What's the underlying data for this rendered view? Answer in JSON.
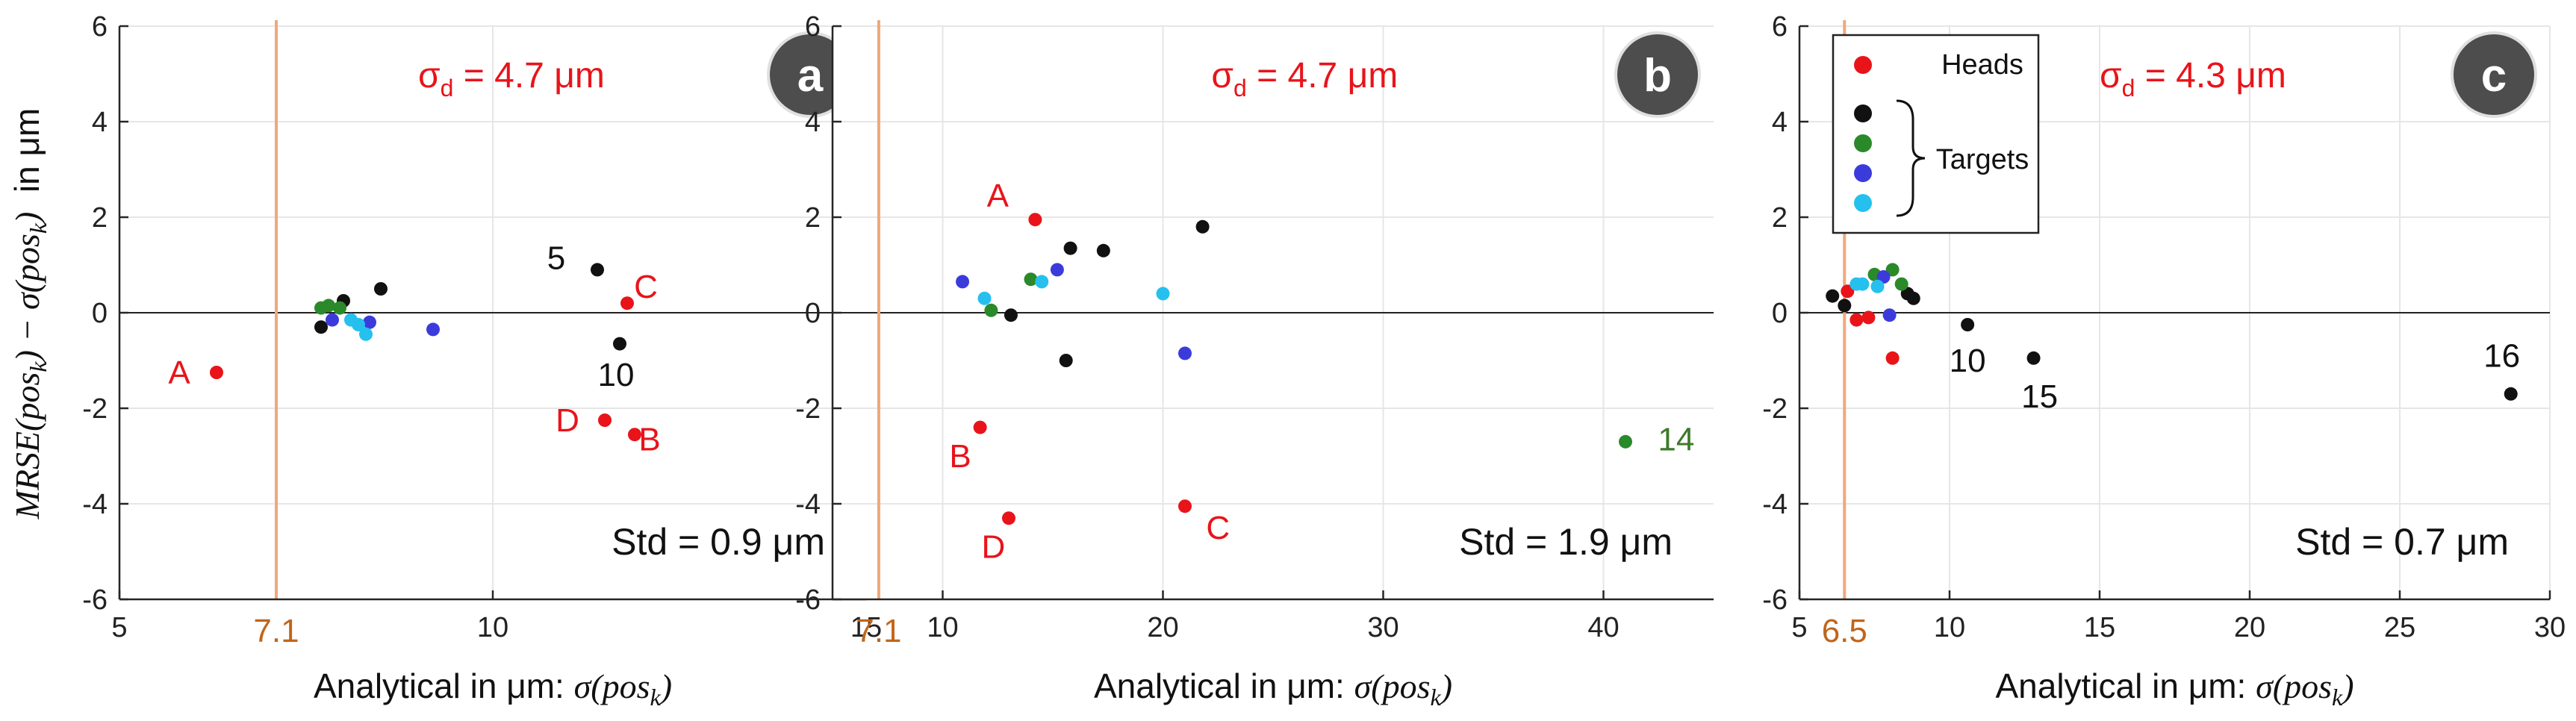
{
  "figure": {
    "ylabel": "MRSE(pos_k) − σ(pos_k)  in μm",
    "ylabel_parts": {
      "p1": "MRSE(pos",
      "sub1": "k",
      "p2": ") − ",
      "p3": "σ(pos",
      "sub2": "k",
      "p4": ")",
      "p5": "  in μm"
    },
    "xlabel_prefix": "Analytical in μm: ",
    "xlabel_math": "σ(pos",
    "xlabel_sub": "k",
    "xlabel_close": ")"
  },
  "colors": {
    "red": "#e8141a",
    "black": "#111111",
    "green": "#2a8a2a",
    "blue": "#3b3bdc",
    "cyan": "#25c0ee",
    "orange_line": "#f0a87a",
    "orange_text": "#c0651a",
    "green_text": "#3d7a2a",
    "badge": "#4d4d4d"
  },
  "chart_data": [
    {
      "type": "scatter",
      "panel": "a",
      "xlim": [
        5,
        15
      ],
      "ylim": [
        -6,
        6
      ],
      "xticks": [
        5,
        10,
        15
      ],
      "yticks": [
        -6,
        -4,
        -2,
        0,
        2,
        4,
        6
      ],
      "grid": true,
      "vline": {
        "x": 7.1,
        "label": "7.1"
      },
      "sigma_text": "σd = 4.7 μm",
      "sigma_main": "σ",
      "sigma_sub": "d",
      "sigma_rest": " = 4.7 μm",
      "std_text": "Std = 0.9 μm",
      "series": [
        {
          "name": "Heads",
          "color": "red",
          "points": [
            [
              6.3,
              -1.25
            ],
            [
              11.8,
              0.2
            ],
            [
              11.9,
              -2.55
            ],
            [
              11.5,
              -2.25
            ]
          ]
        },
        {
          "name": "Target 1",
          "color": "black",
          "points": [
            [
              7.7,
              -0.3
            ],
            [
              8.0,
              0.25
            ],
            [
              8.5,
              0.5
            ],
            [
              11.4,
              0.9
            ],
            [
              11.7,
              -0.65
            ]
          ]
        },
        {
          "name": "Target 2",
          "color": "green",
          "points": [
            [
              7.7,
              0.1
            ],
            [
              7.8,
              0.15
            ],
            [
              7.95,
              0.1
            ]
          ]
        },
        {
          "name": "Target 3",
          "color": "blue",
          "points": [
            [
              7.85,
              -0.15
            ],
            [
              8.35,
              -0.2
            ],
            [
              9.2,
              -0.35
            ]
          ]
        },
        {
          "name": "Target 4",
          "color": "cyan",
          "points": [
            [
              8.1,
              -0.15
            ],
            [
              8.2,
              -0.25
            ],
            [
              8.3,
              -0.45
            ]
          ]
        }
      ],
      "annotations": [
        {
          "text": "A",
          "x": 5.8,
          "y": -1.25,
          "color": "red"
        },
        {
          "text": "C",
          "x": 12.05,
          "y": 0.55,
          "color": "red"
        },
        {
          "text": "B",
          "x": 12.1,
          "y": -2.65,
          "color": "red"
        },
        {
          "text": "D",
          "x": 11.0,
          "y": -2.25,
          "color": "red"
        },
        {
          "text": "5",
          "x": 10.85,
          "y": 1.15,
          "color": "black"
        },
        {
          "text": "10",
          "x": 11.65,
          "y": -1.3,
          "color": "black"
        }
      ]
    },
    {
      "type": "scatter",
      "panel": "b",
      "xlim": [
        5,
        45
      ],
      "ylim": [
        -6,
        6
      ],
      "xticks": [
        10,
        20,
        30,
        40
      ],
      "yticks": [
        -6,
        -4,
        -2,
        0,
        2,
        4,
        6
      ],
      "grid": true,
      "vline": {
        "x": 7.1,
        "label": "7.1"
      },
      "sigma_text": "σd = 4.7 μm",
      "sigma_main": "σ",
      "sigma_sub": "d",
      "sigma_rest": " = 4.7 μm",
      "std_text": "Std = 1.9 μm",
      "series": [
        {
          "name": "Heads",
          "color": "red",
          "points": [
            [
              14.2,
              1.95
            ],
            [
              11.7,
              -2.4
            ],
            [
              13.0,
              -4.3
            ],
            [
              21.0,
              -4.05
            ]
          ]
        },
        {
          "name": "Target 1",
          "color": "black",
          "points": [
            [
              15.8,
              1.35
            ],
            [
              17.3,
              1.3
            ],
            [
              21.8,
              1.8
            ],
            [
              13.1,
              -0.05
            ],
            [
              15.6,
              -1.0
            ]
          ]
        },
        {
          "name": "Target 2",
          "color": "green",
          "points": [
            [
              14.0,
              0.7
            ],
            [
              12.2,
              0.05
            ],
            [
              41.0,
              -2.7
            ]
          ]
        },
        {
          "name": "Target 3",
          "color": "blue",
          "points": [
            [
              10.9,
              0.65
            ],
            [
              15.2,
              0.9
            ],
            [
              21.0,
              -0.85
            ]
          ]
        },
        {
          "name": "Target 4",
          "color": "cyan",
          "points": [
            [
              11.9,
              0.3
            ],
            [
              14.5,
              0.65
            ],
            [
              20.0,
              0.4
            ]
          ]
        }
      ],
      "annotations": [
        {
          "text": "A",
          "x": 12.5,
          "y": 2.45,
          "color": "red"
        },
        {
          "text": "B",
          "x": 10.8,
          "y": -3.0,
          "color": "red"
        },
        {
          "text": "D",
          "x": 12.3,
          "y": -4.9,
          "color": "red"
        },
        {
          "text": "C",
          "x": 22.5,
          "y": -4.5,
          "color": "red"
        },
        {
          "text": "14",
          "x": 43.3,
          "y": -2.65,
          "color": "green_text"
        }
      ]
    },
    {
      "type": "scatter",
      "panel": "c",
      "xlim": [
        5,
        30
      ],
      "ylim": [
        -6,
        6
      ],
      "xticks": [
        5,
        10,
        15,
        20,
        25,
        30
      ],
      "yticks": [
        -6,
        -4,
        -2,
        0,
        2,
        4,
        6
      ],
      "grid": true,
      "vline": {
        "x": 6.5,
        "label": "6.5"
      },
      "sigma_text": "σd = 4.3 μm",
      "sigma_main": "σ",
      "sigma_sub": "d",
      "sigma_rest": " = 4.3 μm",
      "std_text": "Std = 0.7 μm",
      "legend": {
        "heads": "Heads",
        "targets": "Targets",
        "placement": "top-left"
      },
      "series": [
        {
          "name": "Heads",
          "color": "red",
          "points": [
            [
              6.6,
              0.45
            ],
            [
              6.9,
              -0.15
            ],
            [
              7.3,
              -0.1
            ],
            [
              8.1,
              -0.95
            ]
          ]
        },
        {
          "name": "Target 1",
          "color": "black",
          "points": [
            [
              6.1,
              0.35
            ],
            [
              6.5,
              0.15
            ],
            [
              8.6,
              0.4
            ],
            [
              8.8,
              0.3
            ],
            [
              10.6,
              -0.25
            ],
            [
              12.8,
              -0.95
            ],
            [
              28.7,
              -1.7
            ]
          ]
        },
        {
          "name": "Target 2",
          "color": "green",
          "points": [
            [
              7.5,
              0.8
            ],
            [
              8.1,
              0.9
            ],
            [
              8.4,
              0.6
            ]
          ]
        },
        {
          "name": "Target 3",
          "color": "blue",
          "points": [
            [
              7.8,
              0.75
            ],
            [
              8.0,
              -0.05
            ]
          ]
        },
        {
          "name": "Target 4",
          "color": "cyan",
          "points": [
            [
              6.9,
              0.6
            ],
            [
              7.1,
              0.6
            ],
            [
              7.6,
              0.55
            ]
          ]
        }
      ],
      "annotations": [
        {
          "text": "10",
          "x": 10.6,
          "y": -1.0,
          "color": "black"
        },
        {
          "text": "15",
          "x": 13.0,
          "y": -1.75,
          "color": "black"
        },
        {
          "text": "16",
          "x": 28.4,
          "y": -0.9,
          "color": "black"
        }
      ]
    }
  ]
}
